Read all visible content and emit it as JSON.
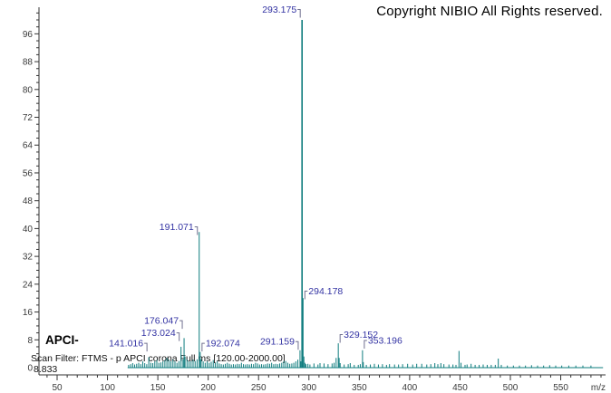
{
  "window": {
    "copyright": "Copyright NIBIO All Rights reserved.",
    "mode_label": "APCI-",
    "scan_filter": "Scan Filter: FTMS - p APCI corona Full ms [120.00-2000.00]",
    "retention_time": "8.833"
  },
  "colors": {
    "peak": "#0e7c7e",
    "annotation": "#3333a3",
    "bracket": "#70708f",
    "axis": "#333333",
    "tick_text": "#3a3a3a",
    "background": "#ffffff"
  },
  "chart_data": {
    "type": "bar",
    "subtype": "mass-spectrum",
    "title": "",
    "xlabel": "m/z",
    "ylabel": "",
    "x_axis": {
      "label_min": 50,
      "label_max": 550,
      "major_step": 50,
      "minor_step": 10,
      "minor_min": 40,
      "minor_max": 590
    },
    "y_axis": {
      "label_min": 0,
      "label_max": 96,
      "major_step": 8,
      "minor_step": 2,
      "minor_max": 102
    },
    "baseline_range": [
      120,
      592
    ],
    "annotations": [
      {
        "mz": 141.016,
        "text": "141.016",
        "intensity": 3,
        "side": "right",
        "label_level": 7
      },
      {
        "mz": 173.024,
        "text": "173.024",
        "intensity": 6,
        "side": "right",
        "label_level": 10
      },
      {
        "mz": 176.047,
        "text": "176.047",
        "intensity": 8.5,
        "side": "right",
        "label_level": 13.5
      },
      {
        "mz": 191.071,
        "text": "191.071",
        "intensity": 39,
        "side": "right",
        "label_level": 40.5
      },
      {
        "mz": 192.074,
        "text": "192.074",
        "intensity": 4.5,
        "side": "left",
        "label_level": 7
      },
      {
        "mz": 291.159,
        "text": "291.159",
        "intensity": 5,
        "side": "right",
        "label_level": 7.5
      },
      {
        "mz": 293.175,
        "text": "293.175",
        "intensity": 100,
        "side": "right",
        "label_level": 103
      },
      {
        "mz": 294.178,
        "text": "294.178",
        "intensity": 20,
        "side": "left",
        "label_level": 22
      },
      {
        "mz": 329.152,
        "text": "329.152",
        "intensity": 7,
        "side": "left",
        "label_level": 9.5
      },
      {
        "mz": 353.196,
        "text": "353.196",
        "intensity": 5,
        "side": "left",
        "label_level": 7.8
      }
    ],
    "peaks": [
      [
        121,
        0.8
      ],
      [
        123,
        1
      ],
      [
        125,
        1.3
      ],
      [
        127,
        0.9
      ],
      [
        129,
        1.1
      ],
      [
        131,
        1.4
      ],
      [
        133,
        1
      ],
      [
        135,
        1.8
      ],
      [
        137,
        1.3
      ],
      [
        139,
        1
      ],
      [
        141.016,
        3
      ],
      [
        143,
        1.4
      ],
      [
        145,
        1.3
      ],
      [
        147,
        1.8
      ],
      [
        149,
        2.2
      ],
      [
        151,
        1.4
      ],
      [
        153,
        1.5
      ],
      [
        155,
        1.8
      ],
      [
        157,
        2.2
      ],
      [
        159,
        2.8
      ],
      [
        161,
        2.3
      ],
      [
        163,
        1.8
      ],
      [
        165,
        2.3
      ],
      [
        167,
        1.8
      ],
      [
        169,
        1.4
      ],
      [
        171,
        1.9
      ],
      [
        173.024,
        6
      ],
      [
        175,
        2.4
      ],
      [
        176.047,
        8.5
      ],
      [
        177,
        3.2
      ],
      [
        179,
        2.4
      ],
      [
        181,
        1.8
      ],
      [
        183,
        1.9
      ],
      [
        185,
        2.3
      ],
      [
        187,
        1.9
      ],
      [
        189,
        2.4
      ],
      [
        191.071,
        39
      ],
      [
        192.074,
        4.5
      ],
      [
        193,
        2.4
      ],
      [
        195,
        1.8
      ],
      [
        197,
        1.4
      ],
      [
        199,
        1.8
      ],
      [
        201,
        1.4
      ],
      [
        203,
        1.7
      ],
      [
        205,
        2.2
      ],
      [
        207,
        1.4
      ],
      [
        209,
        1.8
      ],
      [
        211,
        1.2
      ],
      [
        213,
        1
      ],
      [
        215,
        0.9
      ],
      [
        217,
        1.1
      ],
      [
        219,
        1.4
      ],
      [
        221,
        1.1
      ],
      [
        223,
        0.9
      ],
      [
        225,
        1
      ],
      [
        227,
        0.9
      ],
      [
        229,
        1.1
      ],
      [
        231,
        1
      ],
      [
        233,
        1.4
      ],
      [
        235,
        1
      ],
      [
        237,
        0.9
      ],
      [
        239,
        1
      ],
      [
        241,
        0.9
      ],
      [
        243,
        1.1
      ],
      [
        245,
        1
      ],
      [
        247,
        1.4
      ],
      [
        249,
        1.2
      ],
      [
        251,
        0.9
      ],
      [
        253,
        1
      ],
      [
        255,
        0.9
      ],
      [
        257,
        1
      ],
      [
        259,
        1.2
      ],
      [
        261,
        1.1
      ],
      [
        263,
        1.4
      ],
      [
        265,
        1
      ],
      [
        267,
        1.1
      ],
      [
        269,
        1
      ],
      [
        271,
        1.2
      ],
      [
        273,
        1.4
      ],
      [
        275,
        1.9
      ],
      [
        277,
        1.9
      ],
      [
        279,
        1.4
      ],
      [
        281,
        1.1
      ],
      [
        283,
        1.2
      ],
      [
        285,
        1.4
      ],
      [
        287,
        1.8
      ],
      [
        289,
        2.3
      ],
      [
        291.159,
        5
      ],
      [
        292,
        1.8
      ],
      [
        293.175,
        100
      ],
      [
        294.178,
        20
      ],
      [
        295,
        3.2
      ],
      [
        296,
        1.4
      ],
      [
        297,
        1
      ],
      [
        299,
        1.1
      ],
      [
        301,
        0.9
      ],
      [
        305,
        1.2
      ],
      [
        309,
        0.9
      ],
      [
        311,
        1.3
      ],
      [
        315,
        1.2
      ],
      [
        319,
        1
      ],
      [
        323,
        1.2
      ],
      [
        325,
        1.4
      ],
      [
        327,
        2.8
      ],
      [
        329.152,
        7
      ],
      [
        330,
        2.8
      ],
      [
        331,
        1.3
      ],
      [
        335,
        0.9
      ],
      [
        339,
        1
      ],
      [
        341,
        1.3
      ],
      [
        345,
        0.8
      ],
      [
        349,
        0.8
      ],
      [
        351,
        1
      ],
      [
        353.196,
        5
      ],
      [
        354,
        1.6
      ],
      [
        357,
        0.8
      ],
      [
        361,
        0.9
      ],
      [
        365,
        1.1
      ],
      [
        369,
        0.9
      ],
      [
        373,
        1
      ],
      [
        377,
        0.8
      ],
      [
        380,
        1
      ],
      [
        385,
        0.9
      ],
      [
        389,
        0.9
      ],
      [
        393,
        1
      ],
      [
        398,
        1.1
      ],
      [
        403,
        0.9
      ],
      [
        407,
        1.1
      ],
      [
        412,
        1.1
      ],
      [
        417,
        0.9
      ],
      [
        421,
        1
      ],
      [
        425,
        1.3
      ],
      [
        428,
        1
      ],
      [
        431,
        1.3
      ],
      [
        434,
        1
      ],
      [
        439,
        0.9
      ],
      [
        443,
        0.9
      ],
      [
        446,
        0.8
      ],
      [
        449,
        4.8
      ],
      [
        451,
        1.4
      ],
      [
        455,
        0.8
      ],
      [
        457,
        0.9
      ],
      [
        461,
        1.1
      ],
      [
        465,
        0.8
      ],
      [
        469,
        0.8
      ],
      [
        473,
        0.9
      ],
      [
        477,
        0.8
      ],
      [
        481,
        0.8
      ],
      [
        485,
        0.8
      ],
      [
        488,
        2.6
      ],
      [
        491,
        0.8
      ],
      [
        497,
        0.6
      ],
      [
        503,
        0.6
      ],
      [
        509,
        0.6
      ],
      [
        515,
        0.6
      ],
      [
        521,
        0.7
      ],
      [
        527,
        0.6
      ],
      [
        533,
        0.6
      ],
      [
        539,
        0.7
      ],
      [
        545,
        0.6
      ],
      [
        551,
        0.6
      ],
      [
        558,
        0.6
      ],
      [
        565,
        0.6
      ],
      [
        572,
        0.6
      ],
      [
        580,
        0.6
      ]
    ]
  }
}
